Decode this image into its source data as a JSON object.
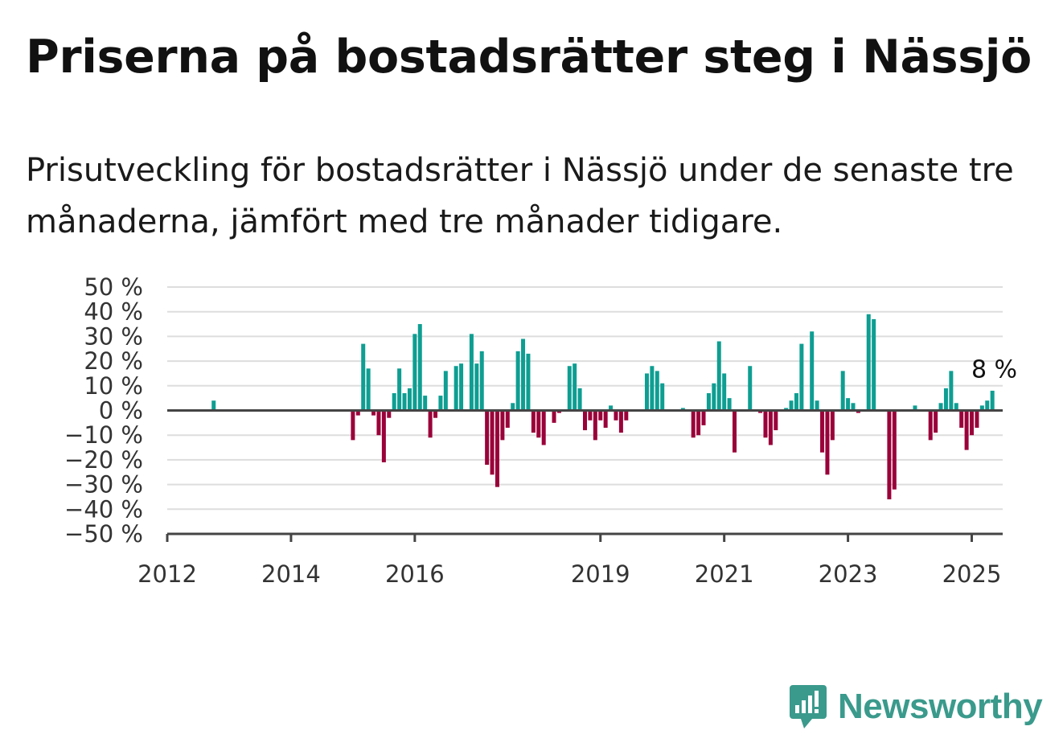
{
  "title": "Priserna på bostadsrätter steg i Nässjö",
  "subtitle": "Prisutveckling för bostadsrätter i Nässjö under de senaste tre månaderna, jämfört med tre månader tidigare.",
  "brand": {
    "name": "Newsworthy",
    "color": "#3a9a8c"
  },
  "chart_data": {
    "type": "bar",
    "colors": {
      "positive": "#0e9e92",
      "negative": "#9a0039",
      "axis": "#444444",
      "grid": "#dddddd"
    },
    "ylim": [
      -50,
      50
    ],
    "yticks": [
      {
        "value": 50,
        "label": "50 %"
      },
      {
        "value": 40,
        "label": "40 %"
      },
      {
        "value": 30,
        "label": "30 %"
      },
      {
        "value": 20,
        "label": "20 %"
      },
      {
        "value": 10,
        "label": "10 %"
      },
      {
        "value": 0,
        "label": "0 %"
      },
      {
        "value": -10,
        "label": "−10 %"
      },
      {
        "value": -20,
        "label": "−20 %"
      },
      {
        "value": -30,
        "label": "−30 %"
      },
      {
        "value": -40,
        "label": "−40 %"
      },
      {
        "value": -50,
        "label": "−50 %"
      }
    ],
    "xlim": [
      "2012-01",
      "2025-07"
    ],
    "xticks": [
      {
        "date": "2012-01",
        "label": "2012"
      },
      {
        "date": "2014-01",
        "label": "2014"
      },
      {
        "date": "2016-01",
        "label": "2016"
      },
      {
        "date": "2019-01",
        "label": "2019"
      },
      {
        "date": "2021-01",
        "label": "2021"
      },
      {
        "date": "2023-01",
        "label": "2023"
      },
      {
        "date": "2025-01",
        "label": "2025"
      }
    ],
    "annotation": {
      "date": "2025-01",
      "label": "8 %"
    },
    "bars": [
      [
        "2012-10",
        4
      ],
      [
        "2015-01",
        -12
      ],
      [
        "2015-02",
        -2
      ],
      [
        "2015-03",
        27
      ],
      [
        "2015-04",
        17
      ],
      [
        "2015-05",
        -2
      ],
      [
        "2015-06",
        -10
      ],
      [
        "2015-07",
        -21
      ],
      [
        "2015-08",
        -3
      ],
      [
        "2015-09",
        7
      ],
      [
        "2015-10",
        17
      ],
      [
        "2015-11",
        7
      ],
      [
        "2015-12",
        9
      ],
      [
        "2016-01",
        31
      ],
      [
        "2016-02",
        35
      ],
      [
        "2016-03",
        6
      ],
      [
        "2016-04",
        -11
      ],
      [
        "2016-05",
        -3
      ],
      [
        "2016-06",
        6
      ],
      [
        "2016-07",
        16
      ],
      [
        "2016-09",
        18
      ],
      [
        "2016-10",
        19
      ],
      [
        "2016-12",
        31
      ],
      [
        "2017-01",
        19
      ],
      [
        "2017-02",
        24
      ],
      [
        "2017-03",
        -22
      ],
      [
        "2017-04",
        -26
      ],
      [
        "2017-05",
        -31
      ],
      [
        "2017-06",
        -12
      ],
      [
        "2017-07",
        -7
      ],
      [
        "2017-08",
        3
      ],
      [
        "2017-09",
        24
      ],
      [
        "2017-10",
        29
      ],
      [
        "2017-11",
        23
      ],
      [
        "2017-12",
        -9
      ],
      [
        "2018-01",
        -11
      ],
      [
        "2018-02",
        -14
      ],
      [
        "2018-04",
        -5
      ],
      [
        "2018-05",
        -1
      ],
      [
        "2018-07",
        18
      ],
      [
        "2018-08",
        19
      ],
      [
        "2018-09",
        9
      ],
      [
        "2018-10",
        -8
      ],
      [
        "2018-11",
        -4
      ],
      [
        "2018-12",
        -12
      ],
      [
        "2019-01",
        -4
      ],
      [
        "2019-02",
        -7
      ],
      [
        "2019-03",
        2
      ],
      [
        "2019-04",
        -4
      ],
      [
        "2019-05",
        -9
      ],
      [
        "2019-06",
        -4
      ],
      [
        "2019-10",
        15
      ],
      [
        "2019-11",
        18
      ],
      [
        "2019-12",
        16
      ],
      [
        "2020-01",
        11
      ],
      [
        "2020-05",
        1
      ],
      [
        "2020-07",
        -11
      ],
      [
        "2020-08",
        -10
      ],
      [
        "2020-09",
        -6
      ],
      [
        "2020-10",
        7
      ],
      [
        "2020-11",
        11
      ],
      [
        "2020-12",
        28
      ],
      [
        "2021-01",
        15
      ],
      [
        "2021-02",
        5
      ],
      [
        "2021-03",
        -17
      ],
      [
        "2021-06",
        18
      ],
      [
        "2021-08",
        -1
      ],
      [
        "2021-09",
        -11
      ],
      [
        "2021-10",
        -14
      ],
      [
        "2021-11",
        -8
      ],
      [
        "2022-01",
        1
      ],
      [
        "2022-02",
        4
      ],
      [
        "2022-03",
        7
      ],
      [
        "2022-04",
        27
      ],
      [
        "2022-06",
        32
      ],
      [
        "2022-07",
        4
      ],
      [
        "2022-08",
        -17
      ],
      [
        "2022-09",
        -26
      ],
      [
        "2022-10",
        -12
      ],
      [
        "2022-12",
        16
      ],
      [
        "2023-01",
        5
      ],
      [
        "2023-02",
        3
      ],
      [
        "2023-03",
        -1
      ],
      [
        "2023-05",
        39
      ],
      [
        "2023-06",
        37
      ],
      [
        "2023-09",
        -36
      ],
      [
        "2023-10",
        -32
      ],
      [
        "2024-02",
        2
      ],
      [
        "2024-05",
        -12
      ],
      [
        "2024-06",
        -9
      ],
      [
        "2024-07",
        3
      ],
      [
        "2024-08",
        9
      ],
      [
        "2024-09",
        16
      ],
      [
        "2024-10",
        3
      ],
      [
        "2024-11",
        -7
      ],
      [
        "2024-12",
        -16
      ],
      [
        "2025-01",
        -10
      ],
      [
        "2025-02",
        -7
      ],
      [
        "2025-03",
        2
      ],
      [
        "2025-04",
        4
      ],
      [
        "2025-05",
        8
      ]
    ]
  }
}
